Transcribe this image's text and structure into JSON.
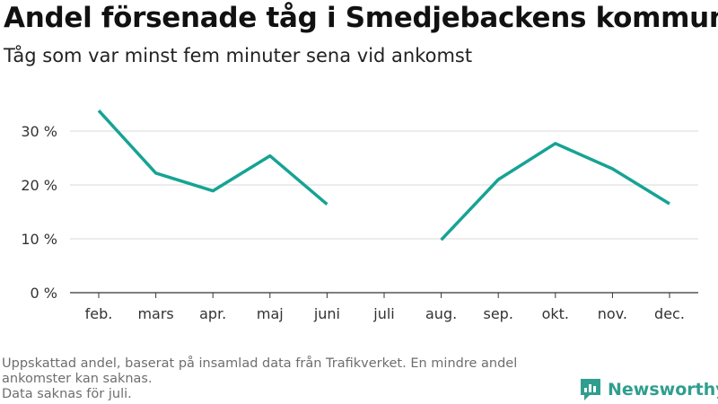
{
  "colors": {
    "line": "#16a394",
    "grid": "#d8d8d8",
    "axis": "#333333",
    "brand": "#2f9e8f"
  },
  "chart_data": {
    "type": "line",
    "title": "Andel försenade tåg i Smedjebackens kommun",
    "subtitle": "Tåg som var minst fem minuter sena vid ankomst",
    "categories": [
      "feb.",
      "mars",
      "apr.",
      "maj",
      "juni",
      "juli",
      "aug.",
      "sep.",
      "okt.",
      "nov.",
      "dec."
    ],
    "series": [
      {
        "values": [
          33.8,
          22.2,
          18.9,
          25.4,
          16.4,
          null,
          9.8,
          21.0,
          27.7,
          23.0,
          16.5
        ]
      }
    ],
    "yticks": [
      0,
      10,
      20,
      30
    ],
    "ytick_labels": [
      "0 %",
      "10 %",
      "20 %",
      "30 %"
    ],
    "ylim": [
      0,
      35
    ],
    "unit": "%",
    "grid": true,
    "legend": "none"
  },
  "footnotes": [
    "Uppskattad andel, baserat på insamlad data från Trafikverket. En mindre andel ankomster kan saknas.",
    "Data saknas för juli."
  ],
  "brand": {
    "name": "Newsworthy",
    "icon": "newsworthy-logo-icon"
  }
}
